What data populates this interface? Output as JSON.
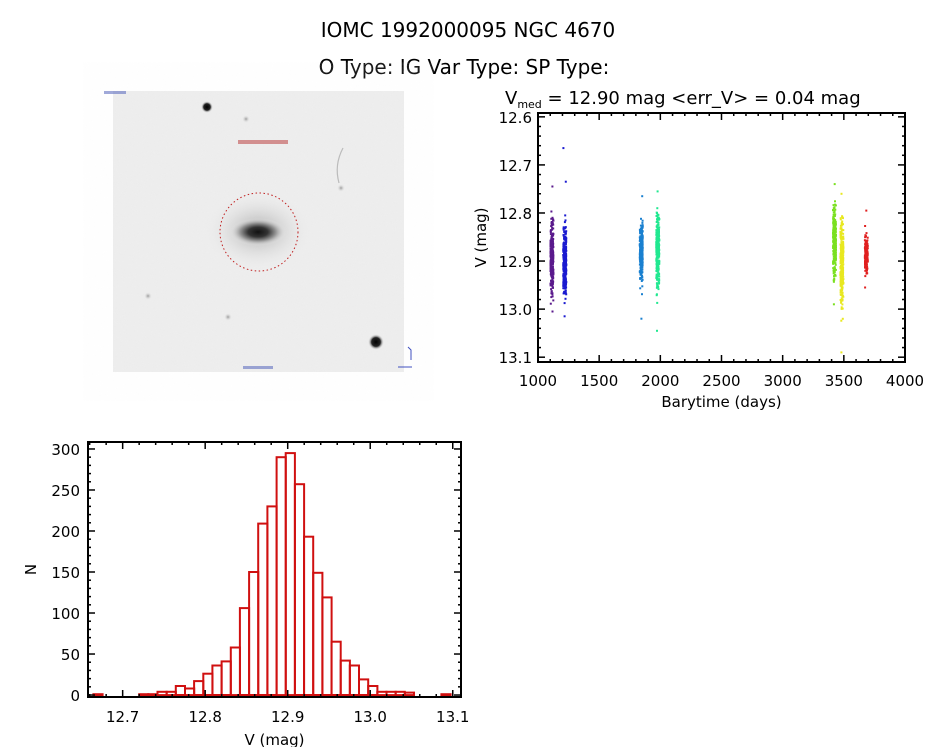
{
  "header": {
    "title": "IOMC 1992000095    NGC  4670",
    "types": "O Type: IG  Var Type:   SP Type:"
  },
  "chart_data": [
    {
      "type": "image",
      "name": "finding-chart",
      "description_label": "DSS image"
    },
    {
      "type": "scatter",
      "name": "light-curve",
      "title_prefix": "V",
      "title_sub": "med",
      "title_rest": " = 12.90 mag <err_V> = 0.04 mag",
      "xlabel": "Barytime (days)",
      "ylabel": "V (mag)",
      "xlim": [
        1000,
        4000
      ],
      "ylim": [
        12.592,
        13.11
      ],
      "y_inverted": true,
      "xticks": [
        1000,
        1500,
        2000,
        2500,
        3000,
        3500,
        4000
      ],
      "yticks": [
        "12.6",
        "12.7",
        "12.8",
        "12.9",
        "13.0",
        "13.1"
      ],
      "series": [
        {
          "name": "season-1",
          "x": 1110,
          "color": "#5a1a8c",
          "min": 12.745,
          "max": 13.005,
          "core": [
            12.785,
            13.0
          ],
          "n": 260
        },
        {
          "name": "season-2",
          "x": 1215,
          "color": "#1a1ad0",
          "min": 12.665,
          "max": 13.015,
          "core": [
            12.8,
            13.0
          ],
          "n": 300
        },
        {
          "name": "season-3",
          "x": 1840,
          "color": "#1a80d0",
          "min": 12.765,
          "max": 13.02,
          "core": [
            12.79,
            12.97
          ],
          "n": 260
        },
        {
          "name": "season-4",
          "x": 1975,
          "color": "#20e890",
          "min": 12.755,
          "max": 13.045,
          "core": [
            12.77,
            12.99
          ],
          "n": 300
        },
        {
          "name": "season-5",
          "x": 3420,
          "color": "#7ae020",
          "min": 12.74,
          "max": 12.99,
          "core": [
            12.76,
            12.96
          ],
          "n": 260
        },
        {
          "name": "season-6",
          "x": 3480,
          "color": "#e8e820",
          "min": 12.76,
          "max": 13.09,
          "core": [
            12.78,
            13.03
          ],
          "n": 300
        },
        {
          "name": "season-7",
          "x": 3680,
          "color": "#e02020",
          "min": 12.795,
          "max": 12.955,
          "core": [
            12.83,
            12.94
          ],
          "n": 160
        }
      ]
    },
    {
      "type": "bar",
      "name": "histogram",
      "xlabel": "V (mag)",
      "ylabel": "N",
      "xlim": [
        12.658,
        13.11
      ],
      "ylim": [
        -2.4,
        308.5
      ],
      "bin_start": 12.6645,
      "bin_width": 0.0111,
      "color": "#d01010",
      "counts": [
        1,
        0,
        0,
        0,
        0,
        1,
        1,
        4,
        4,
        11,
        8,
        17,
        26,
        36,
        41,
        58,
        106,
        150,
        209,
        230,
        290,
        295,
        257,
        193,
        149,
        119,
        65,
        42,
        36,
        19,
        11,
        4,
        4,
        4,
        3,
        0,
        0,
        0,
        1
      ],
      "xticks": [
        "12.7",
        "12.8",
        "12.9",
        "13.0",
        "13.1"
      ],
      "yticks": [
        "0",
        "50",
        "100",
        "150",
        "200",
        "250",
        "300"
      ]
    }
  ]
}
